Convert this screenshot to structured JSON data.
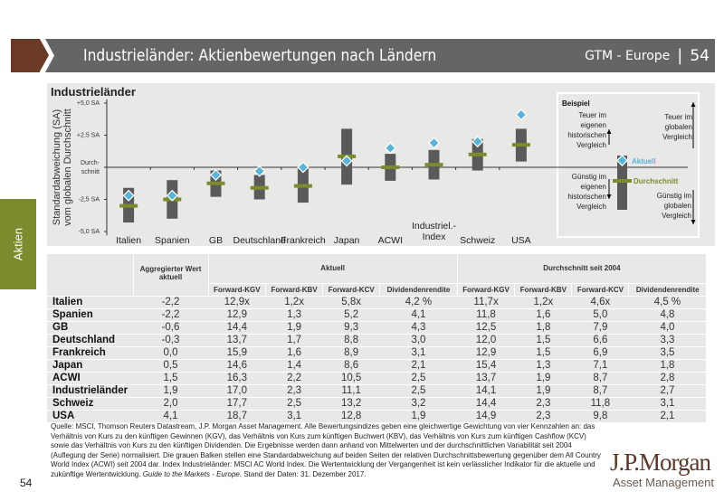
{
  "header": {
    "title": "Industrieländer: Aktienbewertungen nach Ländern",
    "series": "GTM - Europe",
    "page": "54"
  },
  "side_tab": "Aktien",
  "chart_data": {
    "type": "range-bar",
    "title": "Industrieländer",
    "ylabel": "Standardabweichung (SA) vom globalen Durchschnitt",
    "ylim": [
      -5,
      5
    ],
    "yticks": [
      {
        "value": 5,
        "label": "+5,0 SA"
      },
      {
        "value": 2.5,
        "label": "+2,5 SA"
      },
      {
        "value": 0,
        "label": "Durch-\nschnitt"
      },
      {
        "value": -2.5,
        "label": "-2,5 SA"
      },
      {
        "value": -5,
        "label": "-5,0 SA"
      }
    ],
    "categories": [
      "Italien",
      "Spanien",
      "GB",
      "Deutschland",
      "Frankreich",
      "Japan",
      "ACWI",
      "Industriel.-\nIndex",
      "Schweiz",
      "USA"
    ],
    "range_low": [
      -4.3,
      -4.0,
      -2.3,
      -2.5,
      -2.75,
      -1.35,
      -1.05,
      -0.95,
      -0.25,
      0.45
    ],
    "range_high": [
      -1.6,
      -1.0,
      -0.25,
      -0.6,
      -0.1,
      3.0,
      1.05,
      1.35,
      2.2,
      3.0
    ],
    "durchschnitt": [
      -3.0,
      -2.5,
      -1.25,
      -1.6,
      -1.45,
      0.85,
      0.0,
      0.2,
      1.0,
      1.75
    ],
    "aktuell": [
      -2.2,
      -2.2,
      -0.6,
      -0.3,
      0.0,
      0.5,
      1.5,
      1.9,
      2.0,
      4.1
    ],
    "colors": {
      "bar": "#5a5a5a",
      "average": "#7b8b2e",
      "current": "#5ab4d6"
    }
  },
  "legend": {
    "title": "Beispiel",
    "upper_left": [
      "Teuer im",
      "eigenen",
      "historischen",
      "Vergleich"
    ],
    "upper_right": [
      "Teuer im",
      "globalen",
      "Vergleich"
    ],
    "lower_left": [
      "Günstig im",
      "eigenen",
      "historischen",
      "Vergleich"
    ],
    "lower_right": [
      "Günstig im",
      "globalen",
      "Vergleich"
    ],
    "aktuell": "Aktuell",
    "durchschnitt": "Durchschnitt"
  },
  "table": {
    "col_agg": "Aggregierter Wert aktuell",
    "group_current": "Aktuell",
    "group_avg": "Durchschnitt seit 2004",
    "subcols": [
      "Forward-KGV",
      "Forward-KBV",
      "Forward-KCV",
      "Dividendenrendite",
      "Forward-KGV",
      "Forward-KBV",
      "Forward-KCV",
      "Dividendenrendite"
    ],
    "rows": [
      [
        "Italien",
        "-2,2",
        "12,9x",
        "1,2x",
        "5,8x",
        "4,2 %",
        "11,7x",
        "1,2x",
        "4,6x",
        "4,5 %"
      ],
      [
        "Spanien",
        "-2,2",
        "12,9",
        "1,3",
        "5,2",
        "4,1",
        "11,8",
        "1,6",
        "5,0",
        "4,8"
      ],
      [
        "GB",
        "-0,6",
        "14,4",
        "1,9",
        "9,3",
        "4,3",
        "12,5",
        "1,8",
        "7,9",
        "4,0"
      ],
      [
        "Deutschland",
        "-0,3",
        "13,7",
        "1,7",
        "8,8",
        "3,0",
        "12,0",
        "1,5",
        "6,6",
        "3,3"
      ],
      [
        "Frankreich",
        "0,0",
        "15,9",
        "1,6",
        "8,9",
        "3,1",
        "12,9",
        "1,5",
        "6,9",
        "3,5"
      ],
      [
        "Japan",
        "0,5",
        "14,6",
        "1,4",
        "8,6",
        "2,1",
        "15,4",
        "1,3",
        "7,1",
        "1,8"
      ],
      [
        "ACWI",
        "1,5",
        "16,3",
        "2,2",
        "10,5",
        "2,5",
        "13,7",
        "1,9",
        "8,7",
        "2,8"
      ],
      [
        "Industrieländer",
        "1,9",
        "17,0",
        "2,3",
        "11,1",
        "2,5",
        "14,1",
        "1,9",
        "8,7",
        "2,7"
      ],
      [
        "Schweiz",
        "2,0",
        "17,7",
        "2,5",
        "13,2",
        "3,2",
        "14,4",
        "2,3",
        "11,8",
        "3,1"
      ],
      [
        "USA",
        "4,1",
        "18,7",
        "3,1",
        "12,8",
        "1,9",
        "14,9",
        "2,3",
        "9,8",
        "2,1"
      ]
    ]
  },
  "footnote": {
    "text": "Quelle: MSCI, Thomson Reuters Datastream, J.P. Morgan Asset Management. Alle Bewertungsindizes geben eine gleichwertige Gewichtung von vier Kennzahlen an: das Verhältnis von Kurs zu den künftigen Gewinnen (KGV), das Verhältnis von Kurs zum künftigen Buchwert (KBV), das Verhältnis von Kurs zum künftigen Cashflow (KCV) sowie das Verhältnis von Kurs zu den künftigen Dividenden. Die Ergebnisse werden dann anhand von Mittelwerten und der durchschnittlichen Variabilität seit 2004 (Auflegung der Serie) normalisiert. Die grauen Balken stellen eine Standardabweichung auf beiden Seiten der relativen Durchschnittsbewertung gegenüber dem All Country World Index (ACWI) seit 2004 dar. Index Industrieländer: MSCI AC World Index. Die Wertentwicklung der Vergangenheit ist kein verlässlicher Indikator für die aktuelle und zukünftige Wertentwicklung.",
    "guide": "Guide to the Markets - Europe.",
    "date": "Stand der Daten: 31. Dezember 2017."
  },
  "page_number": "54",
  "logo": {
    "line1": "J.P.Morgan",
    "line2": "Asset Management"
  }
}
